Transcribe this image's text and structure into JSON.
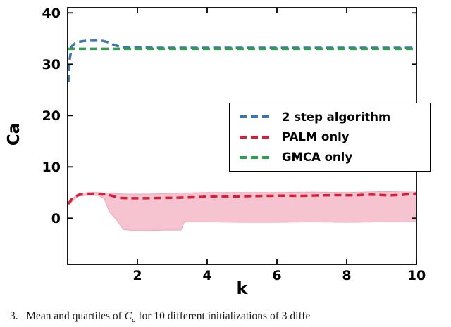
{
  "chart_data": {
    "type": "line",
    "title": "",
    "xlabel": "k",
    "ylabel": "Ca",
    "xlim": [
      0,
      10
    ],
    "ylim": [
      -9,
      41
    ],
    "x_ticks": [
      2,
      4,
      6,
      8,
      10
    ],
    "y_ticks": [
      0,
      10,
      20,
      30,
      40
    ],
    "grid": false,
    "legend_position": "center-right",
    "line_style": "dashed",
    "series": [
      {
        "name": "2 step algorithm",
        "color": "#3b76af",
        "style": "dashed",
        "x": [
          0.02,
          0.06,
          0.12,
          0.25,
          0.5,
          0.8,
          1.0,
          1.15,
          1.35,
          1.55,
          1.8,
          2.5,
          3,
          4,
          5,
          6,
          7,
          8,
          9,
          10
        ],
        "y": [
          26.5,
          31.0,
          33.5,
          34.3,
          34.55,
          34.6,
          34.55,
          34.3,
          33.7,
          33.35,
          33.25,
          33.2,
          33.2,
          33.2,
          33.2,
          33.2,
          33.2,
          33.2,
          33.2,
          33.2
        ]
      },
      {
        "name": "PALM only",
        "color": "#d62039",
        "style": "dashed",
        "x": [
          0.02,
          0.15,
          0.35,
          0.6,
          0.85,
          1.0,
          1.1,
          1.3,
          1.5,
          1.8,
          2.2,
          2.7,
          3.2,
          3.7,
          4.2,
          4.7,
          5.2,
          5.7,
          6.2,
          6.7,
          7.2,
          7.7,
          8.2,
          8.7,
          9.2,
          9.6,
          10
        ],
        "y": [
          2.8,
          4.0,
          4.6,
          4.75,
          4.8,
          4.6,
          4.75,
          4.3,
          3.95,
          3.9,
          3.9,
          3.95,
          4.0,
          4.1,
          4.25,
          4.2,
          4.3,
          4.35,
          4.4,
          4.35,
          4.45,
          4.5,
          4.45,
          4.6,
          4.45,
          4.55,
          4.8
        ]
      },
      {
        "name": "GMCA only",
        "color": "#2f9e4e",
        "style": "dashed",
        "x": [
          0,
          10
        ],
        "y": [
          33.0,
          33.0
        ]
      }
    ],
    "band": {
      "name": "PALM only quartile range",
      "fill": "#f6c0ce",
      "edge": "#eba7bb",
      "x": [
        0.02,
        0.3,
        0.6,
        0.9,
        1.05,
        1.2,
        1.4,
        1.6,
        1.9,
        2.3,
        2.8,
        3.25,
        3.35,
        4.0,
        5.0,
        6.0,
        7.0,
        8.0,
        9.0,
        10
      ],
      "upper": [
        3.0,
        4.8,
        5.0,
        5.0,
        4.9,
        4.9,
        4.8,
        4.7,
        4.7,
        4.7,
        4.8,
        4.9,
        4.9,
        5.0,
        5.0,
        5.0,
        5.1,
        5.0,
        5.2,
        5.1
      ],
      "lower": [
        2.6,
        4.3,
        4.5,
        4.4,
        3.8,
        1.2,
        -0.3,
        -2.2,
        -2.4,
        -2.4,
        -2.3,
        -2.3,
        -0.7,
        -0.7,
        -0.8,
        -0.8,
        -0.7,
        -0.8,
        -0.7,
        -0.7
      ]
    }
  },
  "legend": {
    "entries": [
      {
        "label": "2 step algorithm",
        "color": "#3b76af"
      },
      {
        "label": "PALM only",
        "color": "#d62039"
      },
      {
        "label": "GMCA only",
        "color": "#2f9e4e"
      }
    ]
  },
  "caption": {
    "prefix": "3.   Mean and quartiles of ",
    "symbol": "C",
    "subscript": "a",
    "suffix": " for 10 different initializations of 3 diffe"
  }
}
